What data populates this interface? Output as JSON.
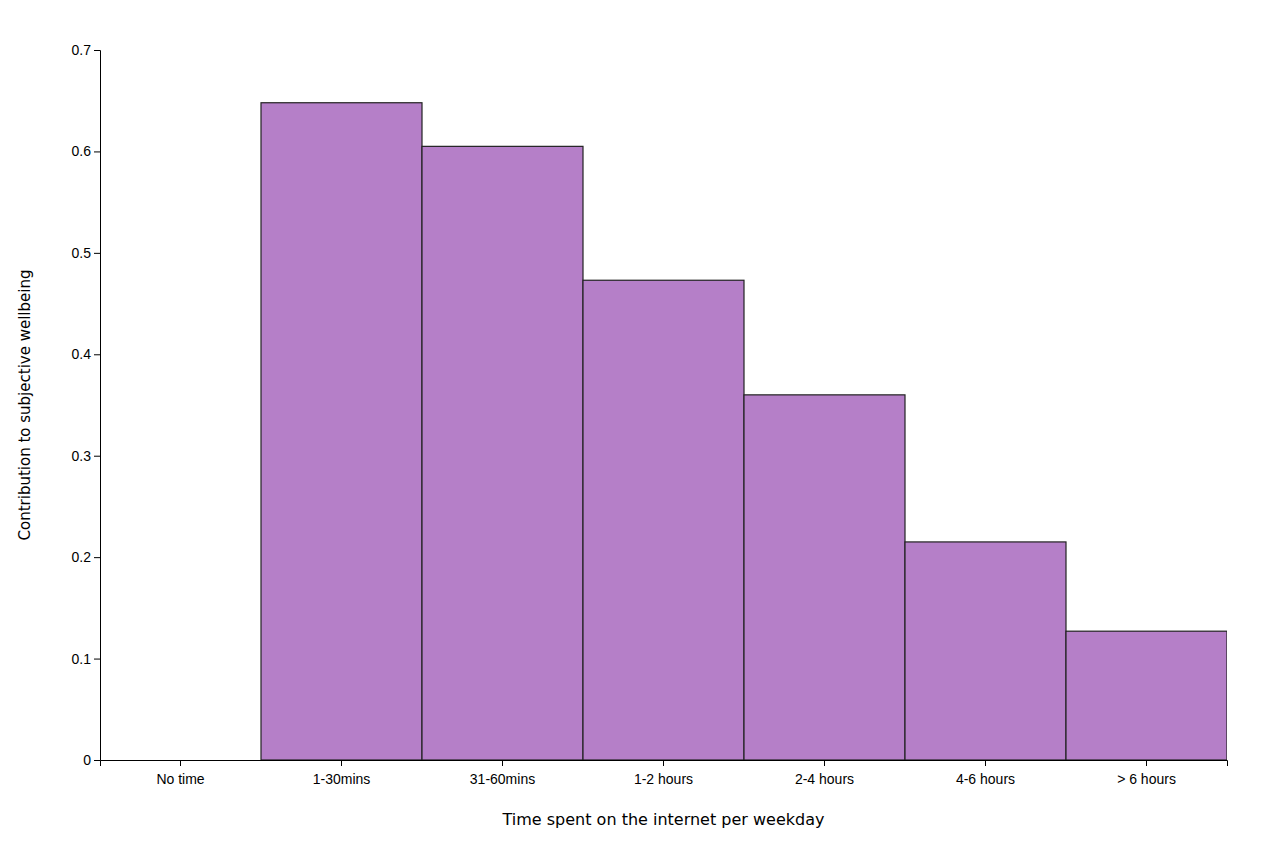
{
  "chart_data": {
    "type": "bar",
    "xlabel": "Time spent on the internet per weekday",
    "ylabel": "Contribution to subjective wellbeing",
    "categories": [
      "No time",
      "1-30mins",
      "31-60mins",
      "1-2 hours",
      "2-4 hours",
      "4-6 hours",
      "> 6 hours"
    ],
    "values": [
      0.0,
      0.648,
      0.605,
      0.473,
      0.36,
      0.215,
      0.127
    ],
    "color": "#b57fc8",
    "ylim": [
      0,
      0.7
    ],
    "yticks": [
      0,
      0.1,
      0.2,
      0.3,
      0.4,
      0.5,
      0.6,
      0.7
    ],
    "grid": false
  }
}
